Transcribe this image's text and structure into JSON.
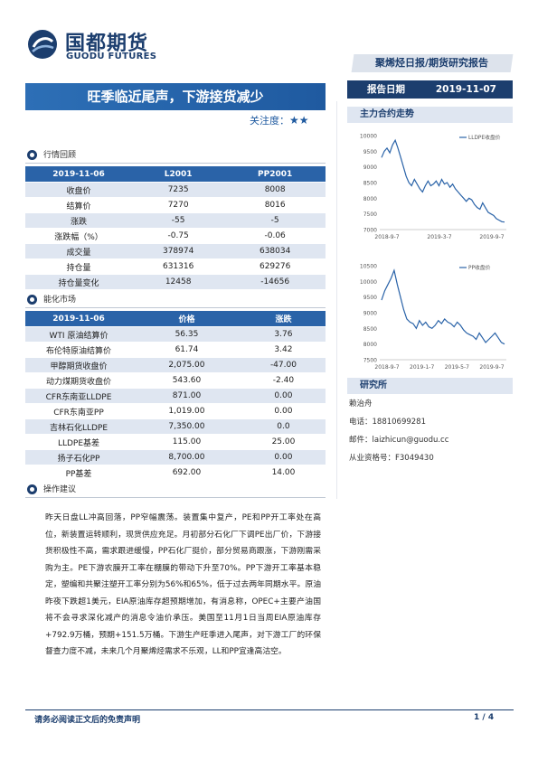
{
  "header": {
    "logo_cn": "国都期货",
    "logo_en": "GUODU FUTURES",
    "report_type": "聚烯烃日报/期货研究报告",
    "date_label": "报告日期",
    "date_value": "2019-11-07",
    "colors": {
      "brand": "#1c3e6e",
      "accent": "#2a63a8"
    }
  },
  "title": "旺季临近尾声，下游接货减少",
  "attention": {
    "label": "关注度：",
    "stars": "★★"
  },
  "section1": {
    "title": "行情回顾"
  },
  "table1": {
    "headers": [
      "2019-11-06",
      "L2001",
      "PP2001"
    ],
    "rows": [
      [
        "收盘价",
        "7235",
        "8008"
      ],
      [
        "结算价",
        "7270",
        "8016"
      ],
      [
        "涨跌",
        "-55",
        "-5"
      ],
      [
        "涨跌幅（%）",
        "-0.75",
        "-0.06"
      ],
      [
        "成交量",
        "378974",
        "638034"
      ],
      [
        "持仓量",
        "631316",
        "629276"
      ],
      [
        "持仓量变化",
        "12458",
        "-14656"
      ]
    ]
  },
  "section2": {
    "title": "能化市场"
  },
  "table2": {
    "headers": [
      "2019-11-06",
      "价格",
      "涨跌"
    ],
    "rows": [
      [
        "WTI 原油结算价",
        "56.35",
        "3.76"
      ],
      [
        "布伦特原油结算价",
        "61.74",
        "3.42"
      ],
      [
        "甲醇期货收盘价",
        "2,075.00",
        "-47.00"
      ],
      [
        "动力煤期货收盘价",
        "543.60",
        "-2.40"
      ],
      [
        "CFR东南亚LLDPE",
        "871.00",
        "0.00"
      ],
      [
        "CFR东南亚PP",
        "1,019.00",
        "0.00"
      ],
      [
        "吉林石化LLDPE",
        "7,350.00",
        "0.0"
      ],
      [
        "LLDPE基差",
        "115.00",
        "25.00"
      ],
      [
        "扬子石化PP",
        "8,700.00",
        "0.00"
      ],
      [
        "PP基差",
        "692.00",
        "14.00"
      ]
    ]
  },
  "section3": {
    "title": "操作建议"
  },
  "advice": "昨天日盘LL冲高回落，PP窄幅震荡。装置集中复产，PE和PP开工率处在高位，新装置运转顺利，现货供应充足。月初部分石化厂下调PE出厂价，下游接货积极性不高，需求跟进缓慢，PP石化厂挺价，部分贸易商跟涨，下游刚需采购为主。PE下游农膜开工率在棚膜的带动下升至70%。PP下游开工率基本稳定，塑编和共聚注塑开工率分别为56%和65%，低于过去两年同期水平。原油昨夜下跌超1美元，EIA原油库存超预期增加，有消息称，OPEC+主要产油国将不会寻求深化减产的消息令油价承压。美国至11月1日当周EIA原油库存+792.9万桶，预期+151.5万桶。下游生产旺季进入尾声，对下游工厂的环保督查力度不减，未来几个月聚烯烃需求不乐观，LL和PP宜逢高沽空。",
  "side": {
    "trend_title": "主力合约走势",
    "research_title": "研究所",
    "analyst": "赖治舟",
    "phone": "电话：18810699281",
    "email": "邮件：laizhicun@guodu.cc",
    "license": "从业资格号：F3049430"
  },
  "chart_data": [
    {
      "type": "line",
      "title": "",
      "legend": "LLDPE收盘价",
      "legend_position": "top-right",
      "ylim": [
        7000,
        10000
      ],
      "yticks": [
        "10000",
        "9500",
        "9000",
        "8500",
        "8000",
        "7500",
        "7000"
      ],
      "xticks": [
        "2018-9-7",
        "2019-3-7",
        "2019-9-7"
      ],
      "series": [
        {
          "name": "LLDPE收盘价",
          "values": [
            9300,
            9500,
            9600,
            9450,
            9700,
            9850,
            9600,
            9300,
            9000,
            8700,
            8500,
            8400,
            8600,
            8450,
            8300,
            8200,
            8400,
            8550,
            8400,
            8450,
            8550,
            8400,
            8600,
            8450,
            8500,
            8350,
            8450,
            8300,
            8200,
            8100,
            8000,
            7900,
            8000,
            7950,
            7800,
            7700,
            7650,
            7850,
            7700,
            7550,
            7500,
            7450,
            7350,
            7300,
            7250,
            7240
          ]
        }
      ],
      "color": "#2a63a8"
    },
    {
      "type": "line",
      "title": "",
      "legend": "PP收盘价",
      "legend_position": "top-right",
      "ylim": [
        7500,
        10500
      ],
      "yticks": [
        "10500",
        "10000",
        "9500",
        "9000",
        "8500",
        "8000",
        "7500"
      ],
      "xticks": [
        "2018-9-7",
        "2019-1-7",
        "2019-5-7",
        "2019-9-7"
      ],
      "series": [
        {
          "name": "PP收盘价",
          "values": [
            9400,
            9700,
            9900,
            10100,
            10350,
            9900,
            9500,
            9100,
            8800,
            8700,
            8650,
            8500,
            8750,
            8600,
            8700,
            8550,
            8500,
            8600,
            8750,
            8650,
            8800,
            8700,
            8650,
            8550,
            8700,
            8600,
            8450,
            8350,
            8300,
            8250,
            8150,
            8350,
            8200,
            8050,
            8150,
            8250,
            8350,
            8200,
            8050,
            8000
          ]
        }
      ],
      "color": "#2a63a8"
    }
  ],
  "footer": {
    "disclaimer": "请务必阅读正文后的免责声明",
    "page": "1 / 4"
  }
}
